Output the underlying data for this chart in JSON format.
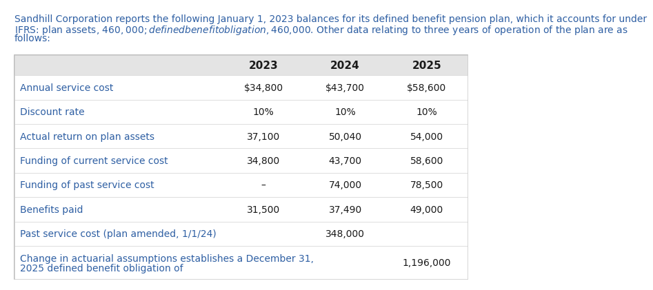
{
  "header_lines": [
    "Sandhill Corporation reports the following January 1, 2023 balances for its defined benefit pension plan, which it accounts for under",
    "IFRS: plan assets, $460,000; defined benefit obligation, $460,000. Other data relating to three years of operation of the plan are as",
    "follows:"
  ],
  "years": [
    "2023",
    "2024",
    "2025"
  ],
  "rows": [
    {
      "label": "Annual service cost",
      "values": [
        "$34,800",
        "$43,700",
        "$58,600"
      ],
      "multiline": false
    },
    {
      "label": "Discount rate",
      "values": [
        "10%",
        "10%",
        "10%"
      ],
      "multiline": false
    },
    {
      "label": "Actual return on plan assets",
      "values": [
        "37,100",
        "50,040",
        "54,000"
      ],
      "multiline": false
    },
    {
      "label": "Funding of current service cost",
      "values": [
        "34,800",
        "43,700",
        "58,600"
      ],
      "multiline": false
    },
    {
      "label": "Funding of past service cost",
      "values": [
        "–",
        "74,000",
        "78,500"
      ],
      "multiline": false
    },
    {
      "label": "Benefits paid",
      "values": [
        "31,500",
        "37,490",
        "49,000"
      ],
      "multiline": false
    },
    {
      "label": "Past service cost (plan amended, 1/1/24)",
      "values": [
        "",
        "348,000",
        ""
      ],
      "multiline": false
    },
    {
      "label_lines": [
        "Change in actuarial assumptions establishes a December 31,",
        "2025 defined benefit obligation of"
      ],
      "label": "Change in actuarial assumptions establishes a December 31,\n2025 defined benefit obligation of",
      "values": [
        "",
        "",
        "1,196,000"
      ],
      "multiline": true
    }
  ],
  "header_bg": "#e4e4e4",
  "table_border": "#b0b0b0",
  "row_border": "#d0d0d0",
  "text_color": "#2e5fa3",
  "value_color": "#1a1a1a",
  "label_color": "#2e5fa3",
  "year_color": "#1a1a1a",
  "font_size": 10.0,
  "header_font_size": 10.0,
  "year_font_size": 11.0
}
